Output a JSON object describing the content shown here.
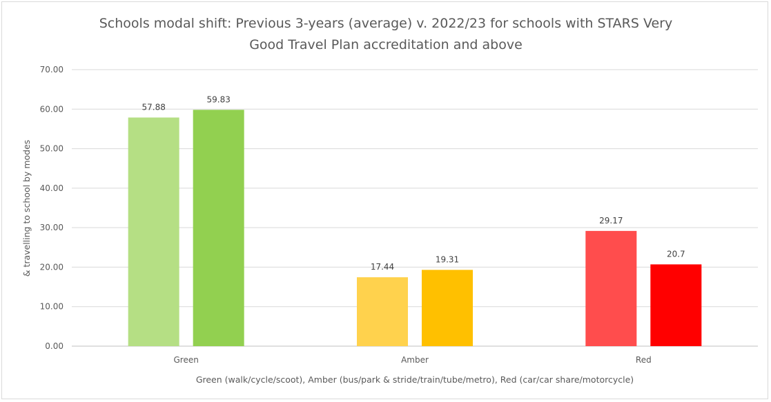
{
  "chart_data": {
    "type": "bar",
    "title_lines": [
      "Schools modal shift: Previous 3-years (average) v. 2022/23 for schools with STARS Very",
      "Good Travel Plan accreditation and above"
    ],
    "xlabel": "Green (walk/cycle/scoot), Amber (bus/park & stride/train/tube/metro), Red (car/car share/motorcycle)",
    "ylabel": "& travelling to school by modes",
    "categories": [
      "Green",
      "Amber",
      "Red"
    ],
    "series": [
      {
        "values": [
          57.88,
          17.44,
          29.17
        ],
        "value_labels": [
          "57.88",
          "17.44",
          "29.17"
        ],
        "colors": [
          "#b5df84",
          "#ffd24d",
          "#ff4d4d"
        ]
      },
      {
        "values": [
          59.83,
          19.31,
          20.7
        ],
        "value_labels": [
          "59.83",
          "19.31",
          "20.7"
        ],
        "colors": [
          "#92d050",
          "#ffc000",
          "#ff0000"
        ]
      }
    ],
    "ylim": [
      0,
      70
    ],
    "y_ticks": [
      0,
      10,
      20,
      30,
      40,
      50,
      60,
      70
    ],
    "y_tick_labels": [
      "0.00",
      "10.00",
      "20.00",
      "30.00",
      "40.00",
      "50.00",
      "60.00",
      "70.00"
    ],
    "grid": true,
    "legend": "none",
    "gridline_color": "#d9d9d9",
    "axis_line_color": "#bfbfbf"
  }
}
